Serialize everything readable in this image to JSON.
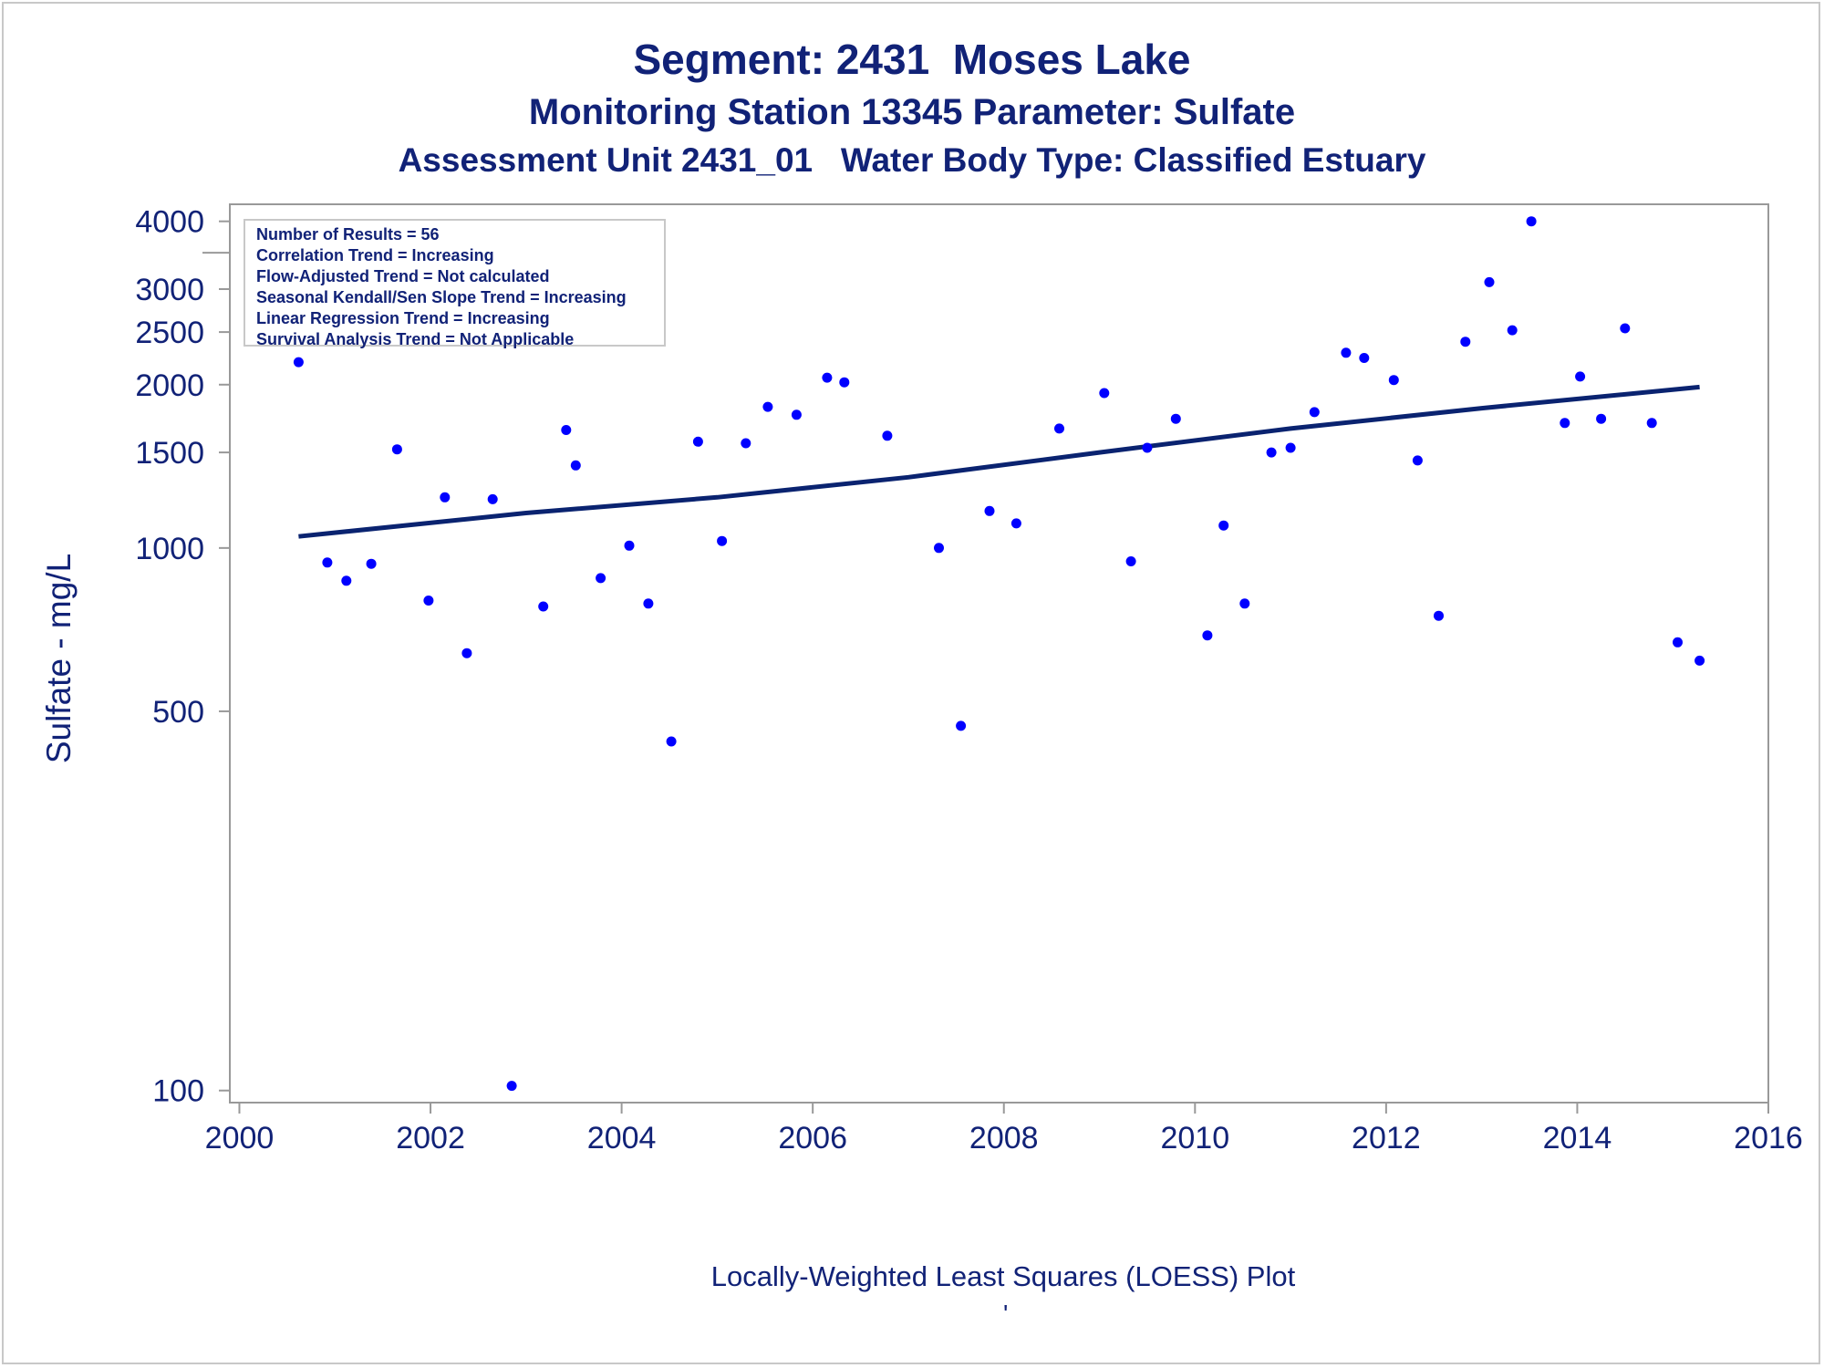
{
  "title": "Segment: 2431  Moses Lake",
  "subtitle": "Monitoring Station 13345 Parameter: Sulfate",
  "subtitle2": "Assessment Unit 2431_01   Water Body Type: Classified Estuary",
  "footnote": "Locally-Weighted Least Squares (LOESS) Plot",
  "footmark": "'",
  "info_lines": [
    "Number of Results = 56",
    "Correlation Trend = Increasing",
    "Flow-Adjusted Trend = Not calculated",
    "Seasonal Kendall/Sen Slope Trend = Increasing",
    "Linear Regression Trend = Increasing",
    "Survival Analysis Trend = Not Applicable"
  ],
  "colors": {
    "text": "#112277",
    "points": "#0000ff",
    "line": "#0a2370",
    "frame": "#999999"
  },
  "chart_data": {
    "type": "scatter",
    "title": "Segment: 2431  Moses Lake",
    "xlabel": "",
    "ylabel": "Sulfate - mg/L",
    "y_scale": "log",
    "xlim": [
      1999.9,
      2016.0
    ],
    "ylim": [
      95,
      4300
    ],
    "x_ticks": [
      2000,
      2002,
      2004,
      2006,
      2008,
      2010,
      2012,
      2014,
      2016
    ],
    "y_ticks": [
      100,
      500,
      1000,
      1500,
      2000,
      2500,
      3000,
      4000
    ],
    "y_minor_ticks": [
      3500
    ],
    "grid": false,
    "points": [
      {
        "x": 2000.62,
        "y": 2200
      },
      {
        "x": 2000.92,
        "y": 940
      },
      {
        "x": 2001.12,
        "y": 870
      },
      {
        "x": 2001.38,
        "y": 935
      },
      {
        "x": 2001.65,
        "y": 1520
      },
      {
        "x": 2001.98,
        "y": 800
      },
      {
        "x": 2002.15,
        "y": 1240
      },
      {
        "x": 2002.38,
        "y": 640
      },
      {
        "x": 2002.65,
        "y": 1230
      },
      {
        "x": 2002.85,
        "y": 102
      },
      {
        "x": 2003.18,
        "y": 780
      },
      {
        "x": 2003.42,
        "y": 1650
      },
      {
        "x": 2003.52,
        "y": 1420
      },
      {
        "x": 2003.78,
        "y": 880
      },
      {
        "x": 2004.08,
        "y": 1010
      },
      {
        "x": 2004.28,
        "y": 790
      },
      {
        "x": 2004.52,
        "y": 440
      },
      {
        "x": 2004.8,
        "y": 1570
      },
      {
        "x": 2005.05,
        "y": 1030
      },
      {
        "x": 2005.3,
        "y": 1560
      },
      {
        "x": 2005.53,
        "y": 1820
      },
      {
        "x": 2005.83,
        "y": 1760
      },
      {
        "x": 2006.15,
        "y": 2060
      },
      {
        "x": 2006.33,
        "y": 2020
      },
      {
        "x": 2006.78,
        "y": 1610
      },
      {
        "x": 2007.32,
        "y": 1000
      },
      {
        "x": 2007.55,
        "y": 470
      },
      {
        "x": 2007.85,
        "y": 1170
      },
      {
        "x": 2008.13,
        "y": 1110
      },
      {
        "x": 2008.58,
        "y": 1660
      },
      {
        "x": 2009.05,
        "y": 1930
      },
      {
        "x": 2009.33,
        "y": 945
      },
      {
        "x": 2009.5,
        "y": 1530
      },
      {
        "x": 2009.8,
        "y": 1730
      },
      {
        "x": 2010.13,
        "y": 690
      },
      {
        "x": 2010.3,
        "y": 1100
      },
      {
        "x": 2010.52,
        "y": 790
      },
      {
        "x": 2010.8,
        "y": 1500
      },
      {
        "x": 2011.0,
        "y": 1530
      },
      {
        "x": 2011.25,
        "y": 1780
      },
      {
        "x": 2011.58,
        "y": 2290
      },
      {
        "x": 2011.77,
        "y": 2240
      },
      {
        "x": 2012.08,
        "y": 2040
      },
      {
        "x": 2012.33,
        "y": 1450
      },
      {
        "x": 2012.55,
        "y": 750
      },
      {
        "x": 2012.83,
        "y": 2400
      },
      {
        "x": 2013.08,
        "y": 3090
      },
      {
        "x": 2013.32,
        "y": 2520
      },
      {
        "x": 2013.52,
        "y": 4000
      },
      {
        "x": 2013.87,
        "y": 1700
      },
      {
        "x": 2014.03,
        "y": 2070
      },
      {
        "x": 2014.25,
        "y": 1730
      },
      {
        "x": 2014.5,
        "y": 2540
      },
      {
        "x": 2014.78,
        "y": 1700
      },
      {
        "x": 2015.05,
        "y": 670
      },
      {
        "x": 2015.28,
        "y": 620
      }
    ],
    "trend_line": {
      "x": [
        2000.62,
        2003.0,
        2005.0,
        2007.0,
        2009.0,
        2011.0,
        2013.0,
        2015.28
      ],
      "y": [
        1050,
        1160,
        1240,
        1350,
        1500,
        1660,
        1810,
        1980
      ]
    }
  }
}
